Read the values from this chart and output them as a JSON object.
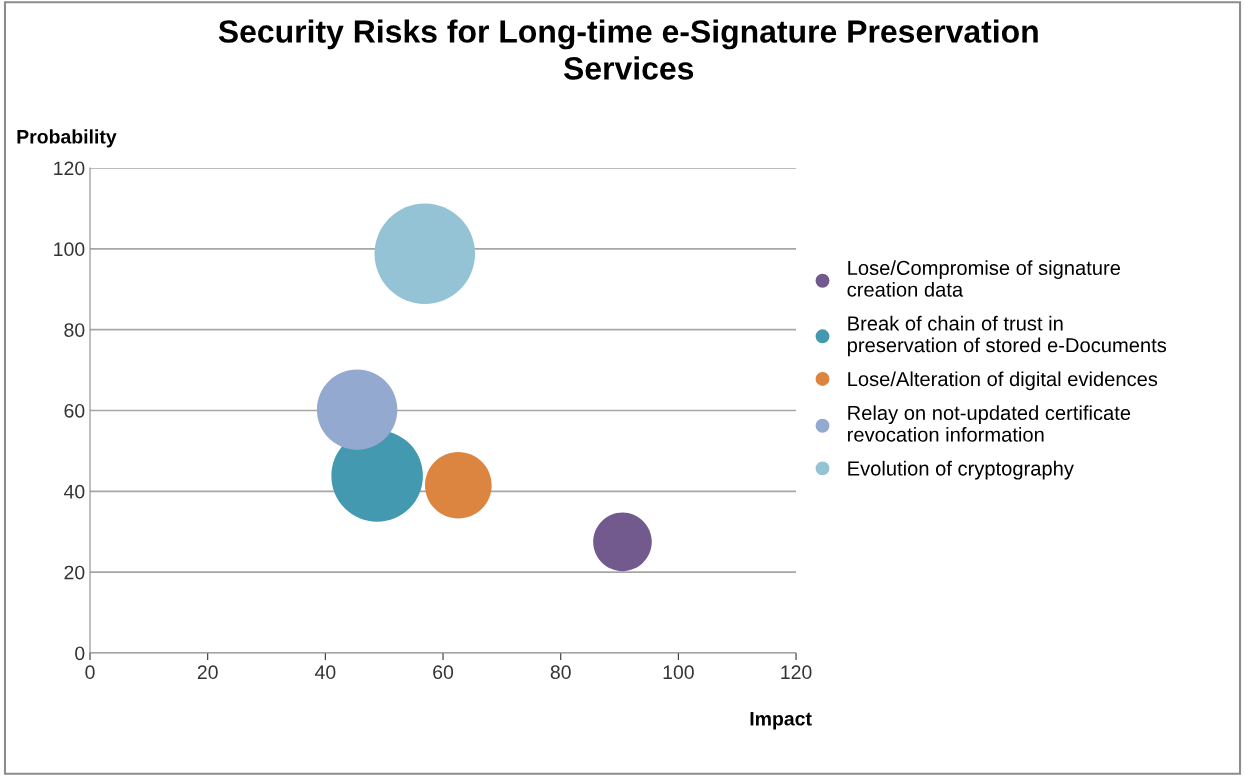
{
  "chart_data": {
    "type": "bubble",
    "title": "Security Risks for Long-time e-Signature Preservation\nServices",
    "xlabel": "Impact",
    "ylabel": "Probability",
    "series": [
      {
        "name": "Lose/Compromise of signature\ncreation data",
        "color": "#72598e",
        "x": [
          90.5
        ],
        "values": [
          27.5
        ],
        "sizes": [
          0.34
        ]
      },
      {
        "name": "Break of chain of trust in\npreservation of stored e-Documents",
        "color": "#4399b0",
        "x": [
          48.8
        ],
        "values": [
          43.8
        ],
        "sizes": [
          0.83
        ]
      },
      {
        "name": "Lose/Alteration of digital evidences",
        "color": "#dc8540",
        "x": [
          62.6
        ],
        "values": [
          41.5
        ],
        "sizes": [
          0.44
        ]
      },
      {
        "name": "Relay on not-updated certificate\nrevocation information",
        "color": "#93a9cf",
        "x": [
          45.4
        ],
        "values": [
          60.2
        ],
        "sizes": [
          0.64
        ]
      },
      {
        "name": "Evolution of cryptography",
        "color": "#93c3d4",
        "x": [
          56.9
        ],
        "values": [
          98.8
        ],
        "sizes": [
          1
        ]
      }
    ],
    "xlim": [
      0,
      120
    ],
    "xticks": [
      0,
      20,
      40,
      60,
      80,
      100,
      120
    ],
    "ylim": [
      0,
      120
    ],
    "yticks": [
      0,
      20,
      40,
      60,
      80,
      100,
      120
    ],
    "grid": "y",
    "legend": "right"
  }
}
